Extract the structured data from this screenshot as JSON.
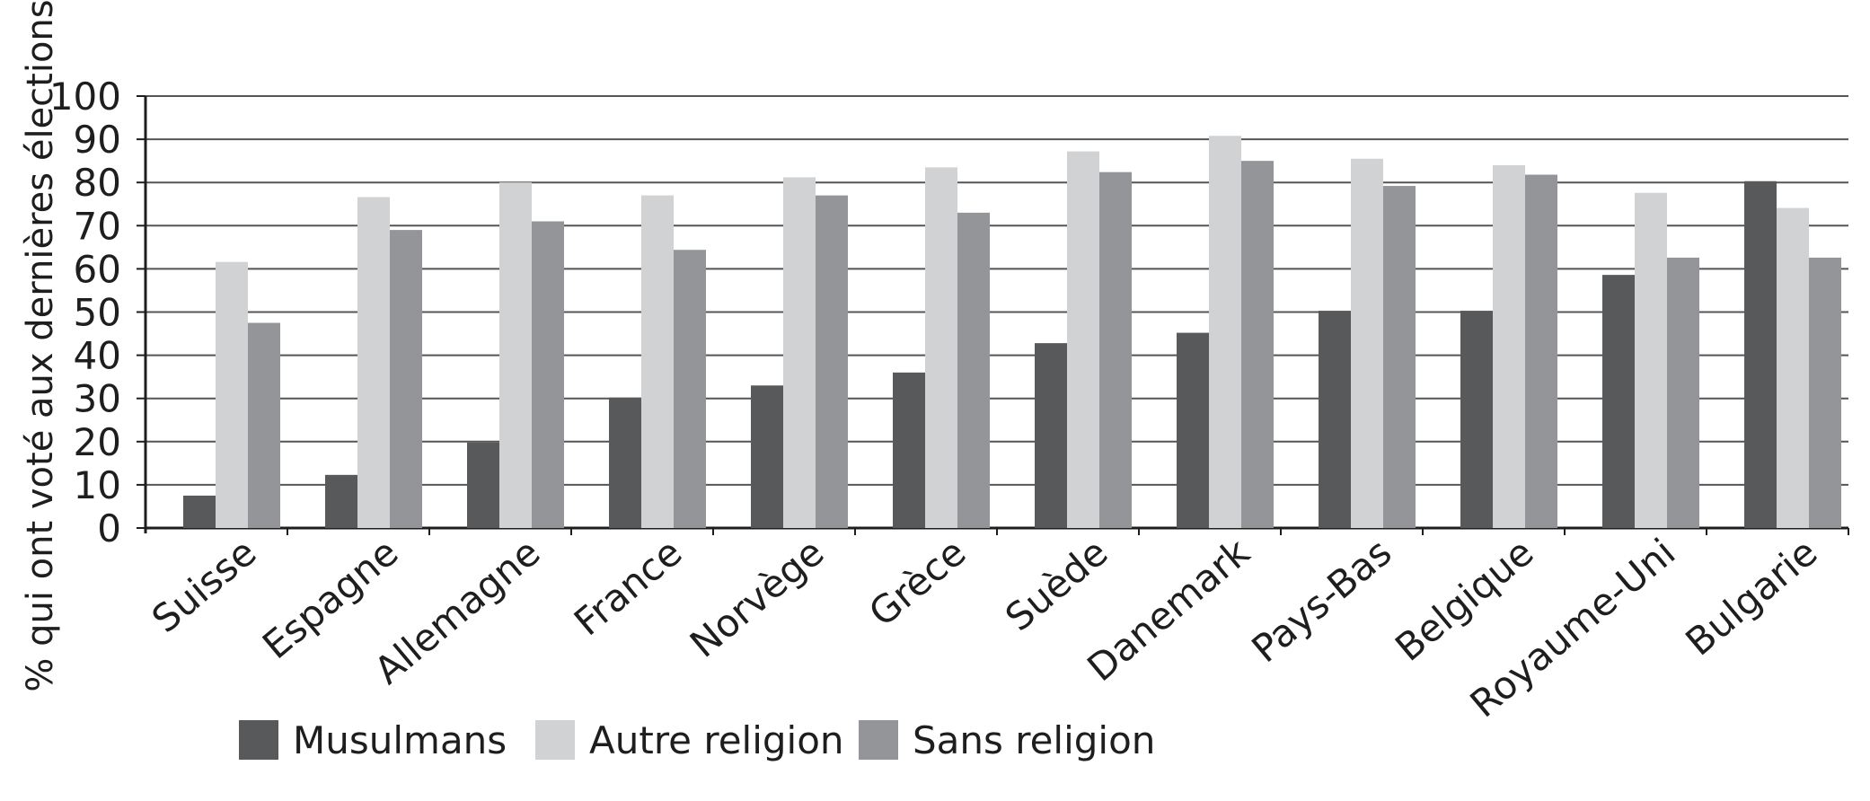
{
  "chart_data": {
    "type": "bar",
    "ylabel": "% qui ont voté aux dernières élections",
    "ylim": [
      0,
      100
    ],
    "yticks": [
      0,
      10,
      20,
      30,
      40,
      50,
      60,
      70,
      80,
      90,
      100
    ],
    "grid": true,
    "legend_position": "bottom",
    "categories": [
      "Suisse",
      "Espagne",
      "Allemagne",
      "France",
      "Norvège",
      "Grèce",
      "Suède",
      "Danemark",
      "Pays-Bas",
      "Belgique",
      "Royaume-Uni",
      "Bulgarie"
    ],
    "series": [
      {
        "name": "Musulmans",
        "color": "#58595b",
        "values": [
          7.5,
          12.3,
          19.8,
          30.2,
          33.0,
          36.0,
          42.8,
          45.2,
          50.3,
          50.3,
          58.6,
          80.3
        ]
      },
      {
        "name": "Autre religion",
        "color": "#d1d2d4",
        "values": [
          61.6,
          76.6,
          80.0,
          77.0,
          81.2,
          83.5,
          87.2,
          90.8,
          85.5,
          84.0,
          77.6,
          74.1
        ]
      },
      {
        "name": "Sans religion",
        "color": "#939598",
        "values": [
          47.5,
          69.0,
          71.0,
          64.4,
          77.0,
          73.0,
          82.4,
          85.0,
          79.2,
          81.8,
          62.6,
          62.6
        ]
      }
    ]
  }
}
